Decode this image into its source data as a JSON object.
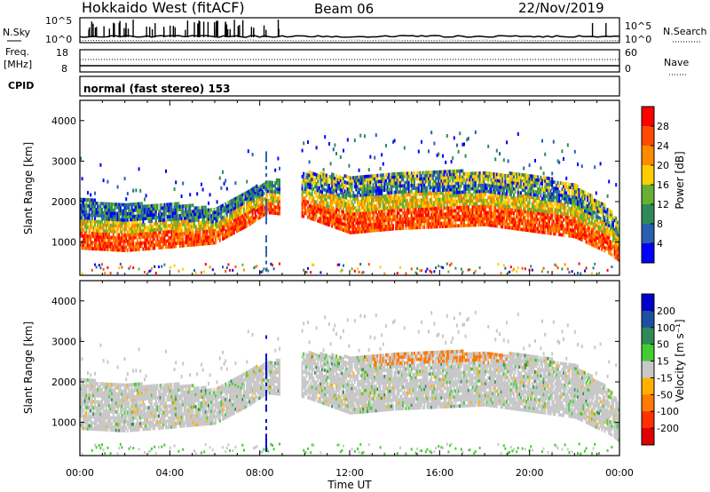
{
  "header": {
    "radar": "Hokkaido West (fitACF)",
    "beam": "Beam 06",
    "date": "22/Nov/2019"
  },
  "panels": {
    "nsky": {
      "label": "N.Sky",
      "ticks_left": [
        "10^5",
        "10^0"
      ],
      "ticks_right": [
        "10^5",
        "10^0"
      ],
      "right_label": "N.Search"
    },
    "freq": {
      "label_line1": "Freq.",
      "label_line2": "[MHz]",
      "ticks_left": [
        "18",
        "8"
      ],
      "ticks_right": [
        "60",
        "0"
      ],
      "right_label": "Nave"
    },
    "cpid": {
      "label": "CPID",
      "mode_text": "normal (fast stereo) 153"
    }
  },
  "chart_data": [
    {
      "type": "heatmap",
      "title": "",
      "xlabel": "Time UT",
      "ylabel": "Slant Range [km]",
      "x_ticks": [
        "00:00",
        "04:00",
        "08:00",
        "12:00",
        "16:00",
        "20:00",
        "00:00"
      ],
      "y_ticks": [
        "1000",
        "2000",
        "3000",
        "4000"
      ],
      "ylim": [
        180,
        4500
      ],
      "colorbar": {
        "label": "Power [dB]",
        "ticks": [
          "28",
          "24",
          "20",
          "16",
          "12",
          "8",
          "4"
        ],
        "colors": [
          "#ff0000",
          "#ff4a00",
          "#ff8a00",
          "#ffcc00",
          "#66b032",
          "#2e8b57",
          "#2a5fb0",
          "#0000ff"
        ]
      },
      "echo_band": [
        {
          "t": 0,
          "lo": 820,
          "hi": 2050
        },
        {
          "t": 2,
          "lo": 760,
          "hi": 1900
        },
        {
          "t": 4,
          "lo": 850,
          "hi": 1950
        },
        {
          "t": 6,
          "lo": 950,
          "hi": 1800
        },
        {
          "t": 7.5,
          "lo": 1400,
          "hi": 2300
        },
        {
          "t": 8.3,
          "lo": 1700,
          "hi": 2450
        },
        {
          "t": 10,
          "lo": 1600,
          "hi": 2700
        },
        {
          "t": 12,
          "lo": 1200,
          "hi": 2600
        },
        {
          "t": 14,
          "lo": 1300,
          "hi": 2700
        },
        {
          "t": 16,
          "lo": 1350,
          "hi": 2750
        },
        {
          "t": 18,
          "lo": 1400,
          "hi": 2700
        },
        {
          "t": 20,
          "lo": 1250,
          "hi": 2650
        },
        {
          "t": 22,
          "lo": 1100,
          "hi": 2400
        },
        {
          "t": 23.5,
          "lo": 700,
          "hi": 1800
        },
        {
          "t": 24,
          "lo": 500,
          "hi": 1400
        }
      ]
    },
    {
      "type": "heatmap",
      "title": "",
      "xlabel": "Time UT",
      "ylabel": "Slant Range [km]",
      "x_ticks": [
        "00:00",
        "04:00",
        "08:00",
        "12:00",
        "16:00",
        "20:00",
        "00:00"
      ],
      "y_ticks": [
        "1000",
        "2000",
        "3000",
        "4000"
      ],
      "ylim": [
        180,
        4500
      ],
      "colorbar": {
        "label": "Velocity [m s⁻¹]",
        "ticks": [
          "200",
          "100",
          "50",
          "15",
          "-15",
          "-50",
          "-100",
          "-200"
        ],
        "colors": [
          "#0000cc",
          "#1e4fa0",
          "#2e8b57",
          "#44cc33",
          "#c8c8c8",
          "#ffb000",
          "#ff7a00",
          "#ff3000",
          "#e00000"
        ]
      }
    }
  ]
}
